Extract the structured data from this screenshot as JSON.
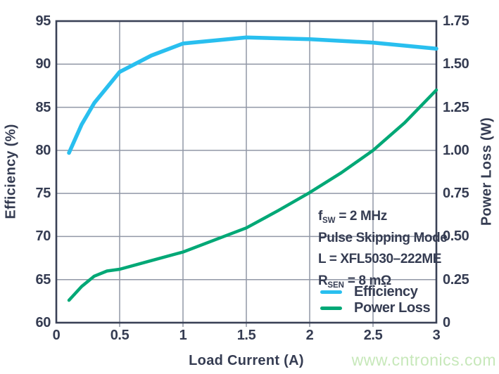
{
  "watermark": "www.cntronics.com",
  "chart_data": {
    "type": "line",
    "grid": true,
    "x_axis": {
      "label": "Load Current (A)",
      "min": 0,
      "max": 3,
      "ticks": [
        "0",
        "0.5",
        "1",
        "1.5",
        "2",
        "2.5",
        "3"
      ]
    },
    "y_left": {
      "label": "Efficiency (%)",
      "min": 60,
      "max": 95,
      "ticks": [
        "95",
        "90",
        "85",
        "80",
        "75",
        "70",
        "65",
        "60"
      ]
    },
    "y_right": {
      "label": "Power Loss (W)",
      "min": 0,
      "max": 1.75,
      "ticks": [
        "1.75",
        "1.50",
        "1.25",
        "1.00",
        "0.75",
        "0.50",
        "0.25",
        "0"
      ]
    },
    "series": [
      {
        "name": "Efficiency",
        "axis": "left",
        "color": "#29bfef",
        "points": [
          [
            0.1,
            79.7
          ],
          [
            0.2,
            83.0
          ],
          [
            0.3,
            85.5
          ],
          [
            0.5,
            89.1
          ],
          [
            0.75,
            91.0
          ],
          [
            1.0,
            92.4
          ],
          [
            1.5,
            93.1
          ],
          [
            2.0,
            92.9
          ],
          [
            2.5,
            92.5
          ],
          [
            3.0,
            91.8
          ]
        ]
      },
      {
        "name": "Power Loss",
        "axis": "right",
        "color": "#00a876",
        "points": [
          [
            0.1,
            0.13
          ],
          [
            0.2,
            0.21
          ],
          [
            0.3,
            0.27
          ],
          [
            0.4,
            0.3
          ],
          [
            0.5,
            0.31
          ],
          [
            0.75,
            0.36
          ],
          [
            1.0,
            0.41
          ],
          [
            1.25,
            0.48
          ],
          [
            1.5,
            0.55
          ],
          [
            1.75,
            0.65
          ],
          [
            2.0,
            0.755
          ],
          [
            2.25,
            0.87
          ],
          [
            2.5,
            1.0
          ],
          [
            2.75,
            1.16
          ],
          [
            3.0,
            1.35
          ]
        ]
      }
    ],
    "annotation": {
      "lines": [
        {
          "pre": "f",
          "sub": "SW",
          "post": " = 2 MHz"
        },
        {
          "pre": "Pulse Skipping Mode",
          "sub": "",
          "post": ""
        },
        {
          "pre": "L = XFL5030–222ME",
          "sub": "",
          "post": ""
        },
        {
          "pre": "R",
          "sub": "SEN",
          "post": " = 8 mΩ"
        }
      ]
    },
    "legend": [
      {
        "label": "Efficiency",
        "color": "#29bfef"
      },
      {
        "label": "Power Loss",
        "color": "#00a876"
      }
    ],
    "colors": {
      "text": "#353c52",
      "grid": "#9197a6",
      "axis": "#3a4156",
      "watermark": "#c7e8ba"
    }
  }
}
